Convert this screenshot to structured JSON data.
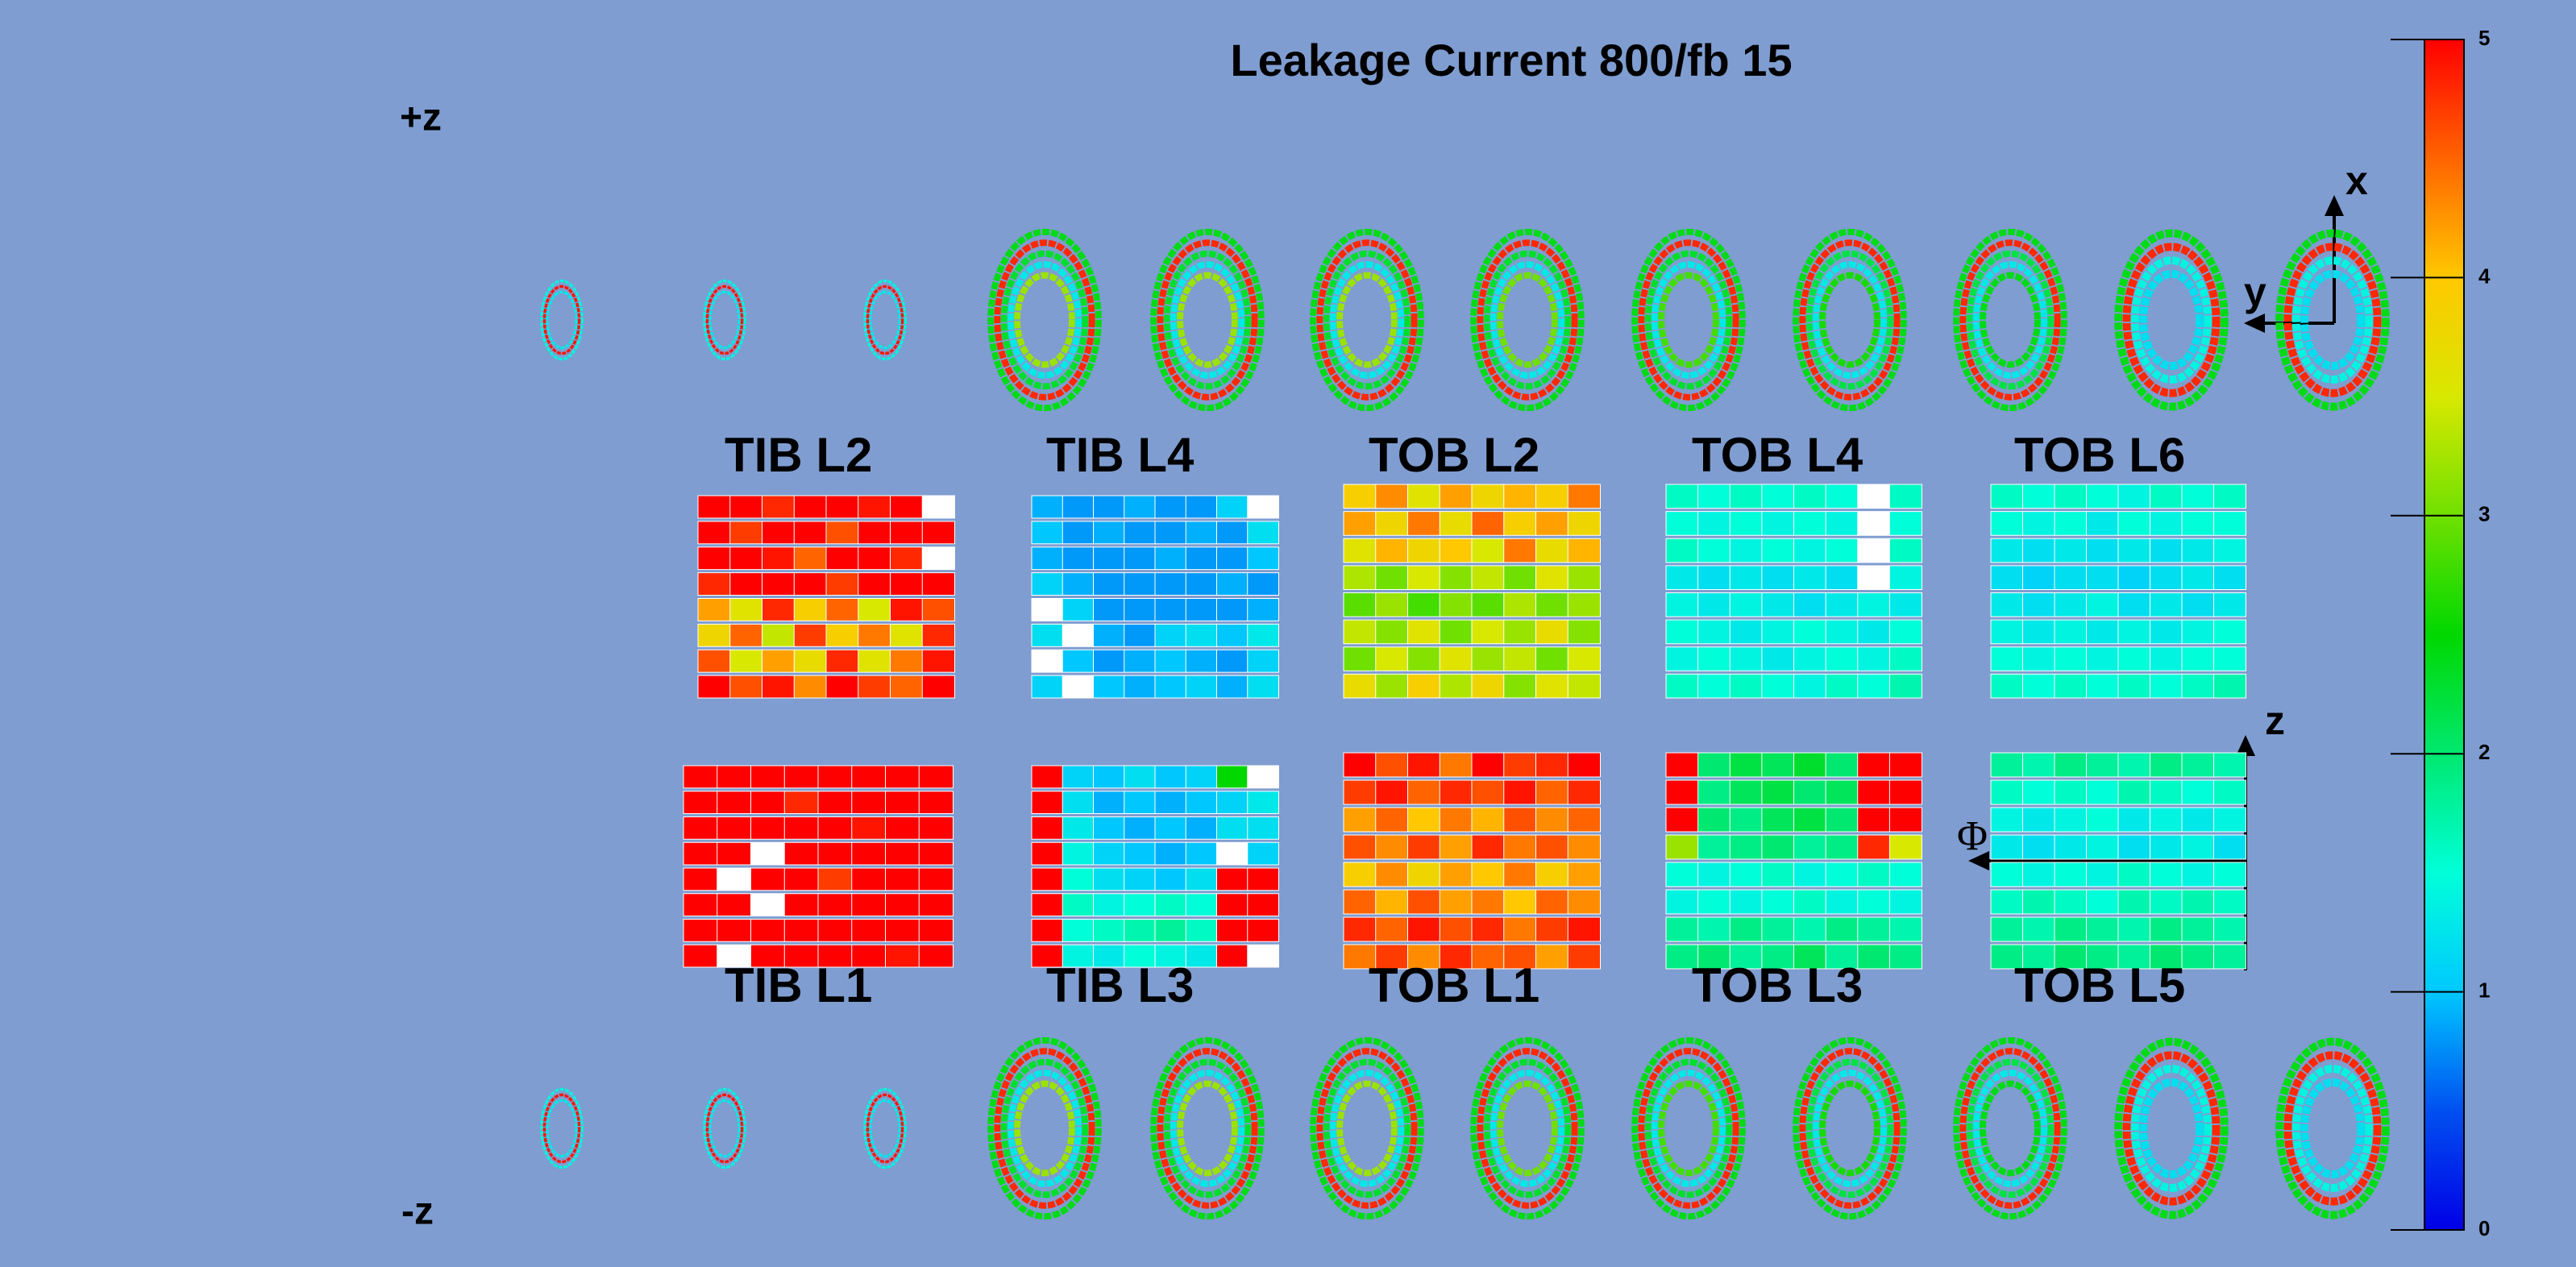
{
  "title": "Leakage Current 800/fb 15",
  "labels": {
    "plus_z": "+z",
    "minus_z": "-z",
    "x": "x",
    "y": "y",
    "z": "z",
    "phi": "Φ"
  },
  "colorbar": {
    "zlim": [
      0,
      5
    ],
    "ticks": [
      0,
      1,
      2,
      3,
      4,
      5
    ],
    "palette": [
      "#0000e6",
      "#0050f0",
      "#00c8ff",
      "#00ffd8",
      "#00e870",
      "#00d800",
      "#70e000",
      "#d8e800",
      "#ffc800",
      "#ff6400",
      "#ff0000"
    ]
  },
  "disks": {
    "plus_z": [
      [
        1.4,
        4.9,
        1.3
      ],
      [
        1.4,
        4.9,
        1.3
      ],
      [
        1.4,
        4.9,
        1.3
      ],
      [
        2.4,
        4.8,
        2.3,
        1.3,
        3.2
      ],
      [
        2.4,
        4.8,
        2.3,
        1.3,
        3.2
      ],
      [
        2.4,
        4.8,
        2.3,
        1.3,
        3.2
      ],
      [
        2.4,
        4.8,
        2.3,
        1.3,
        3.0
      ],
      [
        2.4,
        4.8,
        2.3,
        1.3,
        2.8
      ],
      [
        2.4,
        4.8,
        2.2,
        1.3,
        2.6
      ],
      [
        2.4,
        4.8,
        2.2,
        1.3,
        2.4
      ],
      [
        2.4,
        4.8,
        1.4,
        1.2
      ],
      [
        2.4,
        4.8,
        1.4,
        1.2
      ]
    ],
    "minus_z": [
      [
        1.4,
        4.9,
        1.3
      ],
      [
        1.4,
        4.9,
        1.3
      ],
      [
        1.4,
        4.9,
        1.3
      ],
      [
        2.4,
        4.8,
        2.3,
        1.3,
        3.2
      ],
      [
        2.4,
        4.8,
        2.3,
        1.3,
        3.2
      ],
      [
        2.4,
        4.8,
        2.3,
        1.3,
        3.2
      ],
      [
        2.4,
        4.8,
        2.3,
        1.3,
        3.0
      ],
      [
        2.4,
        4.8,
        2.3,
        1.3,
        2.8
      ],
      [
        2.4,
        4.8,
        2.2,
        1.3,
        2.6
      ],
      [
        2.4,
        4.8,
        2.2,
        1.3,
        2.4
      ],
      [
        2.4,
        4.8,
        1.4,
        1.2
      ],
      [
        2.4,
        4.8,
        1.4,
        1.2
      ]
    ]
  },
  "barrel": [
    {
      "name": "TIB L2",
      "values": [
        [
          5,
          5,
          4.8,
          5,
          5,
          4.9,
          5,
          null
        ],
        [
          5,
          4.7,
          5,
          5,
          4.6,
          5,
          5,
          5
        ],
        [
          5,
          5,
          4.9,
          4.5,
          5,
          5,
          4.8,
          null
        ],
        [
          4.8,
          5,
          5,
          5,
          4.7,
          5,
          5,
          5
        ],
        [
          4.2,
          3.6,
          4.8,
          3.9,
          4.5,
          3.5,
          4.9,
          4.6
        ],
        [
          3.8,
          4.5,
          3.4,
          4.7,
          3.9,
          4.4,
          3.6,
          4.8
        ],
        [
          4.6,
          3.5,
          4.2,
          3.7,
          4.8,
          3.6,
          4.4,
          4.9
        ],
        [
          5,
          4.6,
          4.9,
          4.3,
          5,
          4.7,
          4.5,
          5
        ]
      ]
    },
    {
      "name": "TIB L4",
      "values": [
        [
          0.9,
          0.8,
          0.8,
          0.9,
          0.8,
          0.8,
          1.1,
          null
        ],
        [
          1.0,
          0.8,
          0.9,
          0.8,
          0.8,
          0.9,
          0.8,
          1.2
        ],
        [
          0.9,
          0.8,
          0.8,
          0.8,
          0.9,
          0.8,
          0.8,
          1.0
        ],
        [
          1.1,
          0.9,
          0.8,
          0.8,
          0.8,
          0.8,
          0.9,
          0.8
        ],
        [
          null,
          1.1,
          0.8,
          0.8,
          0.8,
          0.8,
          0.8,
          0.9
        ],
        [
          1.2,
          null,
          0.9,
          0.8,
          1.1,
          1.2,
          1.0,
          1.3
        ],
        [
          null,
          1.0,
          0.8,
          0.9,
          1.0,
          0.9,
          0.8,
          1.1
        ],
        [
          1.1,
          null,
          1.0,
          0.9,
          1.0,
          1.1,
          0.9,
          1.2
        ]
      ]
    },
    {
      "name": "TOB L2",
      "values": [
        [
          3.9,
          4.3,
          3.6,
          4.2,
          3.8,
          4.1,
          3.9,
          4.4
        ],
        [
          4.2,
          3.8,
          4.4,
          3.7,
          4.5,
          3.9,
          4.2,
          3.8
        ],
        [
          3.6,
          4.1,
          3.8,
          4.0,
          3.5,
          4.4,
          3.7,
          4.1
        ],
        [
          3.3,
          3.0,
          3.5,
          3.1,
          3.4,
          3.0,
          3.6,
          3.2
        ],
        [
          2.9,
          3.2,
          2.8,
          3.1,
          2.9,
          3.3,
          3.0,
          3.2
        ],
        [
          3.4,
          3.1,
          3.6,
          3.0,
          3.5,
          3.2,
          3.7,
          3.1
        ],
        [
          3.0,
          3.5,
          3.1,
          3.6,
          3.2,
          3.4,
          3.0,
          3.5
        ],
        [
          3.7,
          3.2,
          3.9,
          3.3,
          3.8,
          3.1,
          3.6,
          3.4
        ]
      ]
    },
    {
      "name": "TOB L4",
      "values": [
        [
          1.6,
          1.5,
          1.6,
          1.5,
          1.6,
          1.5,
          null,
          1.6
        ],
        [
          1.5,
          1.4,
          1.5,
          1.4,
          1.5,
          1.4,
          null,
          1.5
        ],
        [
          1.6,
          1.5,
          1.4,
          1.5,
          1.4,
          1.5,
          null,
          1.6
        ],
        [
          1.3,
          1.2,
          1.3,
          1.2,
          1.3,
          1.2,
          null,
          1.4
        ],
        [
          1.4,
          1.3,
          1.4,
          1.3,
          1.2,
          1.3,
          1.4,
          1.3
        ],
        [
          1.5,
          1.4,
          1.3,
          1.4,
          1.5,
          1.4,
          1.3,
          1.5
        ],
        [
          1.4,
          1.5,
          1.4,
          1.3,
          1.4,
          1.5,
          1.4,
          1.6
        ],
        [
          1.6,
          1.5,
          1.6,
          1.5,
          1.4,
          1.6,
          1.5,
          1.7
        ]
      ]
    },
    {
      "name": "TOB L6",
      "values": [
        [
          1.6,
          1.5,
          1.6,
          1.5,
          1.4,
          1.6,
          1.5,
          1.6
        ],
        [
          1.5,
          1.4,
          1.5,
          1.3,
          1.5,
          1.4,
          1.5,
          1.5
        ],
        [
          1.3,
          1.2,
          1.3,
          1.2,
          1.3,
          1.2,
          1.3,
          1.4
        ],
        [
          1.2,
          1.1,
          1.2,
          1.2,
          1.1,
          1.2,
          1.3,
          1.2
        ],
        [
          1.3,
          1.2,
          1.3,
          1.4,
          1.2,
          1.3,
          1.2,
          1.3
        ],
        [
          1.4,
          1.3,
          1.4,
          1.3,
          1.4,
          1.3,
          1.4,
          1.5
        ],
        [
          1.5,
          1.4,
          1.5,
          1.4,
          1.5,
          1.4,
          1.5,
          1.5
        ],
        [
          1.6,
          1.5,
          1.6,
          1.5,
          1.6,
          1.5,
          1.6,
          1.7
        ]
      ]
    },
    {
      "name": "TIB L1",
      "values": [
        [
          5,
          5,
          5,
          5,
          5,
          5,
          5,
          5
        ],
        [
          5,
          5,
          5,
          4.8,
          5,
          5,
          5,
          5
        ],
        [
          5,
          5,
          5,
          5,
          5,
          4.9,
          5,
          5
        ],
        [
          5,
          5,
          null,
          5,
          5,
          5,
          5,
          5
        ],
        [
          5,
          null,
          5,
          5,
          4.7,
          5,
          5,
          5
        ],
        [
          5,
          5,
          null,
          5,
          5,
          5,
          5,
          5
        ],
        [
          5,
          5,
          5,
          5,
          5,
          5,
          5,
          5
        ],
        [
          5,
          null,
          5,
          5,
          5,
          5,
          4.9,
          5
        ]
      ]
    },
    {
      "name": "TIB L3",
      "values": [
        [
          5,
          1.1,
          1.0,
          1.2,
          1.0,
          1.1,
          2.5,
          null
        ],
        [
          5,
          1.2,
          0.9,
          1.0,
          0.9,
          1.0,
          1.1,
          1.3
        ],
        [
          5,
          1.3,
          1.0,
          0.9,
          1.0,
          0.9,
          1.2,
          1.2
        ],
        [
          5,
          1.4,
          1.1,
          1.0,
          0.9,
          1.0,
          null,
          1.1
        ],
        [
          5,
          1.5,
          1.2,
          1.1,
          1.0,
          1.2,
          5,
          5
        ],
        [
          5,
          1.6,
          1.4,
          1.5,
          1.6,
          1.5,
          5,
          5
        ],
        [
          5,
          1.5,
          1.6,
          1.7,
          1.8,
          1.6,
          5,
          5
        ],
        [
          5,
          1.4,
          1.3,
          1.5,
          1.4,
          1.3,
          5,
          null
        ]
      ]
    },
    {
      "name": "TOB L1",
      "values": [
        [
          5,
          4.6,
          4.9,
          4.4,
          5,
          4.7,
          4.8,
          5
        ],
        [
          4.7,
          4.9,
          4.5,
          4.8,
          4.6,
          4.9,
          4.5,
          4.8
        ],
        [
          4.2,
          4.5,
          4.0,
          4.4,
          4.1,
          4.6,
          4.3,
          4.5
        ],
        [
          4.6,
          4.3,
          4.7,
          4.2,
          4.8,
          4.4,
          4.6,
          4.3
        ],
        [
          3.9,
          4.3,
          3.8,
          4.2,
          4.0,
          4.4,
          3.9,
          4.2
        ],
        [
          4.5,
          4.1,
          4.6,
          4.2,
          4.4,
          4.0,
          4.5,
          4.3
        ],
        [
          4.8,
          4.5,
          4.9,
          4.6,
          4.8,
          4.4,
          4.7,
          4.9
        ],
        [
          4.4,
          4.7,
          4.3,
          4.8,
          4.5,
          4.6,
          4.2,
          4.7
        ]
      ]
    },
    {
      "name": "TOB L3",
      "values": [
        [
          5,
          2.0,
          2.2,
          2.1,
          2.3,
          2.0,
          5,
          5
        ],
        [
          5,
          1.9,
          2.1,
          2.2,
          2.0,
          2.1,
          5,
          5
        ],
        [
          5,
          2.0,
          1.9,
          2.1,
          2.2,
          2.0,
          5,
          5
        ],
        [
          3.2,
          1.8,
          1.9,
          2.0,
          1.8,
          1.9,
          4.8,
          3.5
        ],
        [
          1.5,
          1.4,
          1.5,
          1.6,
          1.4,
          1.5,
          1.6,
          1.5
        ],
        [
          1.4,
          1.5,
          1.4,
          1.5,
          1.6,
          1.4,
          1.5,
          1.4
        ],
        [
          1.8,
          1.7,
          1.9,
          1.8,
          1.7,
          1.9,
          1.8,
          1.7
        ],
        [
          1.9,
          2.0,
          1.8,
          1.9,
          2.1,
          1.8,
          2.0,
          1.9
        ]
      ]
    },
    {
      "name": "TOB L5",
      "values": [
        [
          1.8,
          1.7,
          1.9,
          1.8,
          1.7,
          1.9,
          1.8,
          1.7
        ],
        [
          1.6,
          1.5,
          1.6,
          1.5,
          1.7,
          1.6,
          1.5,
          1.6
        ],
        [
          1.4,
          1.3,
          1.4,
          1.5,
          1.3,
          1.4,
          1.3,
          1.4
        ],
        [
          1.3,
          1.2,
          1.3,
          1.4,
          1.2,
          1.3,
          1.4,
          1.2
        ],
        [
          1.5,
          1.4,
          1.5,
          1.4,
          1.6,
          1.5,
          1.4,
          1.5
        ],
        [
          1.6,
          1.7,
          1.6,
          1.5,
          1.7,
          1.6,
          1.7,
          1.6
        ],
        [
          1.8,
          1.7,
          1.9,
          1.8,
          1.7,
          1.9,
          1.8,
          1.7
        ],
        [
          1.9,
          1.8,
          2.0,
          1.9,
          1.8,
          2.0,
          1.9,
          1.8
        ]
      ]
    }
  ]
}
